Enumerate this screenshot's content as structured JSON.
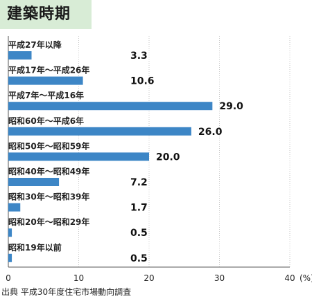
{
  "title": "建築時期",
  "source": "出典 平成30年度住宅市場動向調査",
  "unit_label": "(%)",
  "colors": {
    "bar": "#3d86c6",
    "grid": "#c8c8c8",
    "header_bg": "#d8ecd6"
  },
  "chart_data": {
    "type": "bar",
    "orientation": "horizontal",
    "title": "建築時期",
    "xlabel": "(%)",
    "ylabel": "",
    "xlim": [
      0,
      40
    ],
    "xticks": [
      0,
      10,
      20,
      30,
      40
    ],
    "grid": true,
    "categories": [
      "平成27年以降",
      "平成17年～平成26年",
      "平成7年～平成16年",
      "昭和60年～平成6年",
      "昭和50年～昭和59年",
      "昭和40年～昭和49年",
      "昭和30年～昭和39年",
      "昭和20年～昭和29年",
      "昭和19年以前"
    ],
    "values": [
      3.3,
      10.6,
      29.0,
      26.0,
      20.0,
      7.2,
      1.7,
      0.5,
      0.5
    ],
    "value_labels": [
      "3.3",
      "10.6",
      "29.0",
      "26.0",
      "20.0",
      "7.2",
      "1.7",
      "0.5",
      "0.5"
    ]
  }
}
